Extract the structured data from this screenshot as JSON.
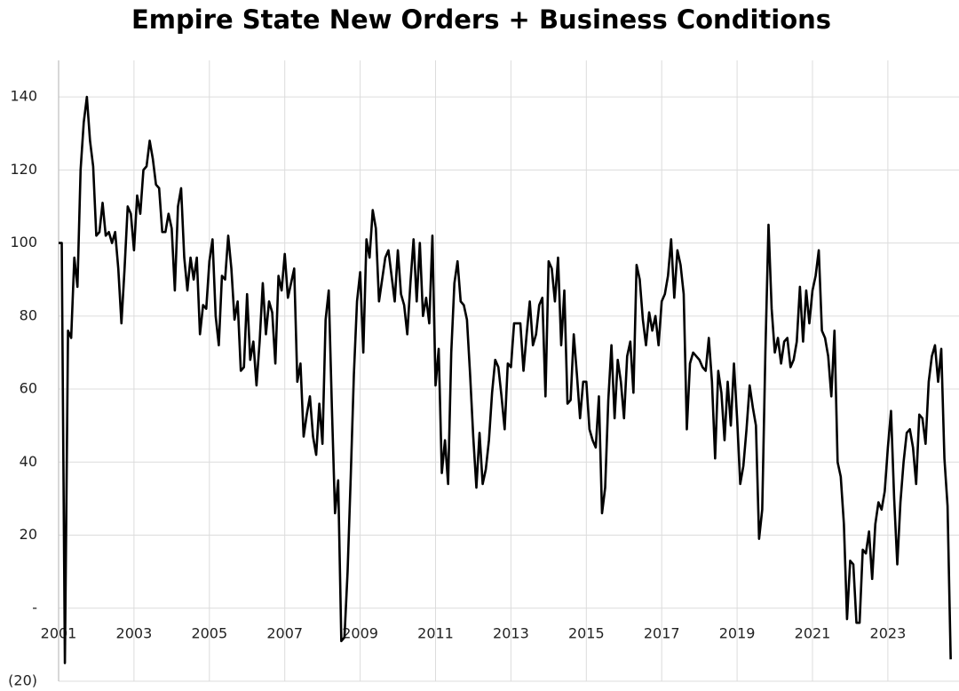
{
  "chart_data": {
    "type": "line",
    "title": "Empire State New Orders + Business Conditions",
    "categories": [
      "2001",
      null,
      null,
      null,
      null,
      null,
      null,
      null,
      null,
      null,
      null,
      null,
      null,
      null,
      null,
      null,
      null,
      null,
      null,
      null,
      null,
      null,
      null,
      null,
      "2003",
      null,
      null,
      null,
      null,
      null,
      null,
      null,
      null,
      null,
      null,
      null,
      null,
      null,
      null,
      null,
      null,
      null,
      null,
      null,
      null,
      null,
      null,
      null,
      "2005",
      null,
      null,
      null,
      null,
      null,
      null,
      null,
      null,
      null,
      null,
      null,
      null,
      null,
      null,
      null,
      null,
      null,
      null,
      null,
      null,
      null,
      null,
      null,
      "2007",
      null,
      null,
      null,
      null,
      null,
      null,
      null,
      null,
      null,
      null,
      null,
      null,
      null,
      null,
      null,
      null,
      null,
      null,
      null,
      null,
      null,
      null,
      null,
      "2009",
      null,
      null,
      null,
      null,
      null,
      null,
      null,
      null,
      null,
      null,
      null,
      null,
      null,
      null,
      null,
      null,
      null,
      null,
      null,
      null,
      null,
      null,
      null,
      "2011",
      null,
      null,
      null,
      null,
      null,
      null,
      null,
      null,
      null,
      null,
      null,
      null,
      null,
      null,
      null,
      null,
      null,
      null,
      null,
      null,
      null,
      null,
      null,
      "2013",
      null,
      null,
      null,
      null,
      null,
      null,
      null,
      null,
      null,
      null,
      null,
      null,
      null,
      null,
      null,
      null,
      null,
      null,
      null,
      null,
      null,
      null,
      null,
      "2015",
      null,
      null,
      null,
      null,
      null,
      null,
      null,
      null,
      null,
      null,
      null,
      null,
      null,
      null,
      null,
      null,
      null,
      null,
      null,
      null,
      null,
      null,
      null,
      "2017",
      null,
      null,
      null,
      null,
      null,
      null,
      null,
      null,
      null,
      null,
      null,
      null,
      null,
      null,
      null,
      null,
      null,
      null,
      null,
      null,
      null,
      null,
      null,
      "2019",
      null,
      null,
      null,
      null,
      null,
      null,
      null,
      null,
      null,
      null,
      null,
      null,
      null,
      null,
      null,
      null,
      null,
      null,
      null,
      null,
      null,
      null,
      null,
      "2021",
      null,
      null,
      null,
      null,
      null,
      null,
      null,
      null,
      null,
      null,
      null,
      null,
      null,
      null,
      null,
      null,
      null,
      null,
      null,
      null,
      null,
      null,
      null,
      "2023",
      null,
      null,
      null,
      null,
      null,
      null,
      null,
      null,
      null,
      null,
      null,
      null,
      null,
      null,
      null,
      null,
      null,
      null,
      null,
      null
    ],
    "values": [
      100,
      100,
      -15,
      76,
      74,
      96,
      88,
      120,
      133,
      140,
      128,
      121,
      102,
      103,
      111,
      102,
      103,
      100,
      103,
      93,
      78,
      93,
      110,
      108,
      98,
      113,
      108,
      120,
      121,
      128,
      123,
      116,
      115,
      103,
      103,
      108,
      104,
      87,
      110,
      115,
      96,
      87,
      96,
      90,
      96,
      75,
      83,
      82,
      95,
      101,
      80,
      72,
      91,
      90,
      102,
      93,
      79,
      84,
      65,
      66,
      86,
      68,
      73,
      61,
      73,
      89,
      75,
      84,
      81,
      67,
      91,
      87,
      97,
      85,
      89,
      93,
      62,
      67,
      47,
      53,
      58,
      47,
      42,
      56,
      45,
      79,
      87,
      55,
      26,
      35,
      -9,
      -8,
      10,
      36,
      64,
      84,
      92,
      70,
      101,
      96,
      109,
      104,
      84,
      90,
      96,
      98,
      91,
      84,
      98,
      86,
      83,
      75,
      89,
      101,
      84,
      100,
      80,
      85,
      78,
      102,
      61,
      71,
      37,
      46,
      34,
      70,
      89,
      95,
      84,
      83,
      79,
      64,
      47,
      33,
      48,
      34,
      38,
      46,
      59,
      68,
      66,
      58,
      49,
      67,
      66,
      78,
      78,
      78,
      65,
      75,
      84,
      72,
      75,
      83,
      85,
      58,
      95,
      93,
      84,
      96,
      72,
      87,
      56,
      57,
      75,
      64,
      52,
      62,
      62,
      49,
      46,
      44,
      58,
      26,
      33,
      57,
      72,
      52,
      68,
      62,
      52,
      69,
      73,
      59,
      94,
      90,
      79,
      72,
      81,
      76,
      80,
      72,
      84,
      86,
      91,
      101,
      85,
      98,
      94,
      86,
      49,
      67,
      70,
      69,
      68,
      66,
      65,
      74,
      62,
      41,
      65,
      59,
      46,
      62,
      50,
      67,
      52,
      34,
      39,
      49,
      61,
      55,
      50,
      19,
      27,
      70,
      105,
      82,
      70,
      74,
      67,
      73,
      74,
      66,
      68,
      73,
      88,
      73,
      87,
      78,
      87,
      91,
      98,
      76,
      74,
      69,
      58,
      76,
      40,
      36,
      23,
      -3,
      13,
      12,
      -4,
      -4,
      16,
      15,
      21,
      8,
      23,
      29,
      27,
      32,
      44,
      54,
      30,
      12,
      29,
      40,
      48,
      49,
      44,
      34,
      53,
      52,
      45,
      62,
      69,
      72,
      62,
      71,
      41,
      28,
      -14
    ],
    "color": "#000000",
    "ylim": [
      -20,
      150
    ],
    "yticks": [
      {
        "value": -20,
        "label": "(20)"
      },
      {
        "value": 0,
        "label": "-"
      },
      20,
      40,
      60,
      80,
      100,
      120,
      140
    ],
    "grid": true
  }
}
